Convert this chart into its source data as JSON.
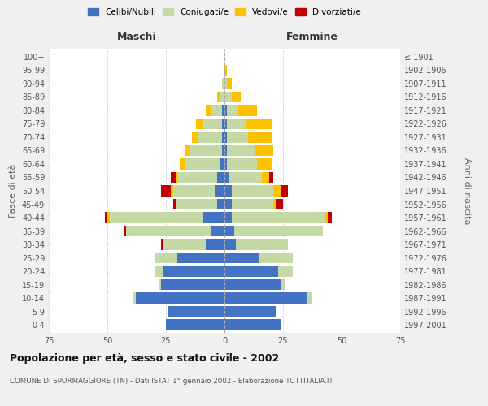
{
  "age_groups": [
    "0-4",
    "5-9",
    "10-14",
    "15-19",
    "20-24",
    "25-29",
    "30-34",
    "35-39",
    "40-44",
    "45-49",
    "50-54",
    "55-59",
    "60-64",
    "65-69",
    "70-74",
    "75-79",
    "80-84",
    "85-89",
    "90-94",
    "95-99",
    "100+"
  ],
  "birth_years": [
    "1997-2001",
    "1992-1996",
    "1987-1991",
    "1982-1986",
    "1977-1981",
    "1972-1976",
    "1967-1971",
    "1962-1966",
    "1957-1961",
    "1952-1956",
    "1947-1951",
    "1942-1946",
    "1937-1941",
    "1932-1936",
    "1927-1931",
    "1922-1926",
    "1917-1921",
    "1912-1916",
    "1907-1911",
    "1902-1906",
    "≤ 1901"
  ],
  "male": {
    "celibi": [
      25,
      24,
      38,
      27,
      26,
      20,
      8,
      6,
      9,
      3,
      4,
      3,
      2,
      1,
      1,
      1,
      1,
      0,
      0,
      0,
      0
    ],
    "coniugati": [
      0,
      0,
      1,
      1,
      4,
      10,
      18,
      36,
      40,
      18,
      18,
      17,
      15,
      14,
      10,
      8,
      5,
      2,
      1,
      0,
      0
    ],
    "vedovi": [
      0,
      0,
      0,
      0,
      0,
      0,
      0,
      0,
      1,
      0,
      1,
      1,
      2,
      2,
      3,
      3,
      2,
      1,
      0,
      0,
      0
    ],
    "divorziati": [
      0,
      0,
      0,
      0,
      0,
      0,
      1,
      1,
      1,
      1,
      4,
      2,
      0,
      0,
      0,
      0,
      0,
      0,
      0,
      0,
      0
    ]
  },
  "female": {
    "nubili": [
      24,
      22,
      35,
      24,
      23,
      15,
      5,
      4,
      3,
      3,
      3,
      2,
      1,
      1,
      1,
      1,
      1,
      0,
      0,
      0,
      0
    ],
    "coniugate": [
      0,
      0,
      2,
      2,
      6,
      14,
      22,
      38,
      40,
      18,
      18,
      14,
      13,
      12,
      9,
      8,
      5,
      3,
      1,
      0,
      0
    ],
    "vedove": [
      0,
      0,
      0,
      0,
      0,
      0,
      0,
      0,
      1,
      1,
      3,
      3,
      6,
      8,
      10,
      11,
      8,
      4,
      2,
      1,
      0
    ],
    "divorziate": [
      0,
      0,
      0,
      0,
      0,
      0,
      0,
      0,
      2,
      3,
      3,
      2,
      0,
      0,
      0,
      0,
      0,
      0,
      0,
      0,
      0
    ]
  },
  "colors": {
    "celibi": "#4472C4",
    "coniugati": "#C5D9A4",
    "vedovi": "#FFC000",
    "divorziati": "#C00000"
  },
  "xlim": 75,
  "title": "Popolazione per età, sesso e stato civile - 2002",
  "subtitle": "COMUNE DI SPORMAGGIORE (TN) - Dati ISTAT 1° gennaio 2002 - Elaborazione TUTTITALIA.IT",
  "ylabel_left": "Fasce di età",
  "ylabel_right": "Anni di nascita",
  "xlabel_left": "Maschi",
  "xlabel_right": "Femmine",
  "legend_labels": [
    "Celibi/Nubili",
    "Coniugati/e",
    "Vedovi/e",
    "Divorziati/e"
  ],
  "bg_color": "#f0f0f0",
  "plot_bg": "#ffffff"
}
